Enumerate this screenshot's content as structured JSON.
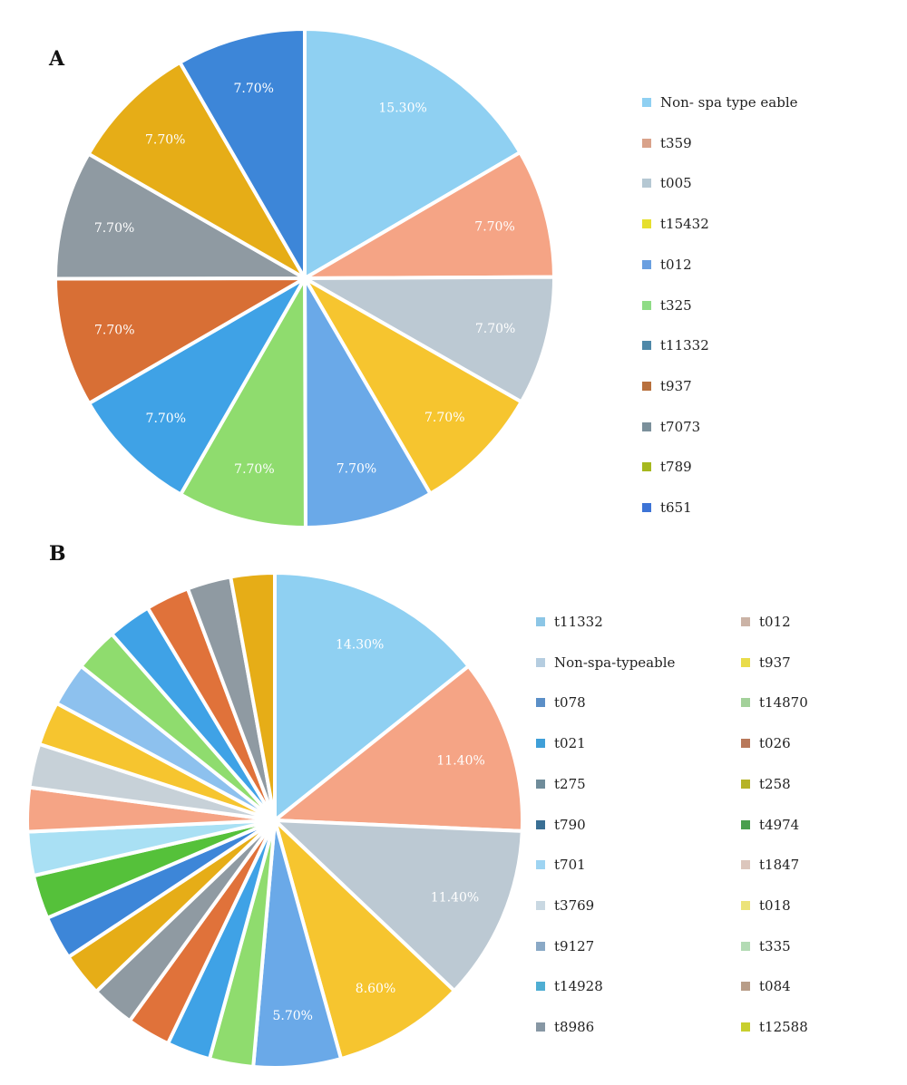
{
  "panels": [
    {
      "letter": "A",
      "chart_data": {
        "type": "pie",
        "categories": [
          "Non- spa type eable",
          "t359",
          "t005",
          "t15432",
          "t012",
          "t325",
          "t11332",
          "t937",
          "t7073",
          "t789",
          "t651"
        ],
        "values": [
          15.3,
          7.7,
          7.7,
          7.7,
          7.7,
          7.7,
          7.7,
          7.7,
          7.7,
          7.7,
          7.7
        ],
        "data_labels": [
          "15.30%",
          "7.70%",
          "7.70%",
          "7.70%",
          "7.70%",
          "7.70%",
          "7.70%",
          "7.70%",
          "7.70%",
          "7.70%",
          "7.70%"
        ],
        "colors": [
          "#8fd0f2",
          "#f5a485",
          "#bcc9d3",
          "#f6c52f",
          "#6aa9e8",
          "#8fdc6e",
          "#3fa2e6",
          "#d86f35",
          "#8f9aa2",
          "#e6ad17",
          "#3d86d8"
        ],
        "legend_colors": [
          "#8fd0f2",
          "#d9a28a",
          "#b5c8d3",
          "#e6df2e",
          "#6a9fe0",
          "#8fdc86",
          "#4f88a8",
          "#b8703d",
          "#7b909b",
          "#a6b81e",
          "#3d74d6"
        ],
        "title": "",
        "legend_position": "right"
      },
      "legend": {
        "columns": [
          [
            "Non- spa type eable",
            "t359",
            "t005",
            "t15432",
            "t012",
            "t325",
            "t11332",
            "t937",
            "t7073",
            "t789",
            "t651"
          ]
        ]
      }
    },
    {
      "letter": "B",
      "chart_data": {
        "type": "pie",
        "categories": [
          "t11332",
          "Non-spa-typeable",
          "t078",
          "t021",
          "t275",
          "t790",
          "t701",
          "t3769",
          "t9127",
          "t14928",
          "t8986",
          "t012",
          "t937",
          "t14870",
          "t026",
          "t258",
          "t4974",
          "t1847",
          "t018",
          "t335",
          "t084",
          "t12588"
        ],
        "values": [
          14.3,
          11.4,
          11.4,
          8.6,
          5.7,
          2.86,
          2.86,
          2.86,
          2.86,
          2.86,
          2.86,
          2.86,
          2.86,
          2.86,
          2.86,
          2.86,
          2.86,
          2.86,
          2.86,
          2.86,
          2.86,
          2.86
        ],
        "data_labels": [
          "14.30%",
          "11.40%",
          "11.40%",
          "8.60%",
          "5.70%",
          "",
          "",
          "",
          "",
          "",
          "",
          "",
          "",
          "",
          "",
          "",
          "",
          "",
          "",
          "",
          "",
          ""
        ],
        "colors": [
          "#8fd0f2",
          "#f5a485",
          "#bcc9d3",
          "#f6c52f",
          "#6aa9e8",
          "#8fdc6e",
          "#3fa2e6",
          "#e0723a",
          "#8f9aa2",
          "#e6ad17",
          "#3d86d8",
          "#55c13a",
          "#a9e0f4",
          "#f5a485",
          "#c7d1d8",
          "#f6c52f",
          "#8dc1ee",
          "#8fdc6e",
          "#3fa2e6",
          "#e0723a",
          "#8f9aa2",
          "#e6ad17"
        ],
        "legend_colors": [
          "#8cc6e6",
          "#b5cde0",
          "#5b8fc7",
          "#3f9fd8",
          "#6f8c9a",
          "#3a6f94",
          "#9ed4f2",
          "#c9d8e2",
          "#8aa9c6",
          "#4faed3",
          "#8797a4",
          "#cbb3a6",
          "#e9dc4a",
          "#a3d19a",
          "#b8785a",
          "#b6b327",
          "#4a9f4e",
          "#dcc6bc",
          "#ece37a",
          "#b3dbb4",
          "#b89d88",
          "#c8cf2e"
        ],
        "title": "",
        "legend_position": "right"
      },
      "legend": {
        "columns": [
          [
            "t11332",
            "Non-spa-typeable",
            "t078",
            "t021",
            "t275",
            "t790",
            "t701",
            "t3769",
            "t9127",
            "t14928",
            "t8986"
          ],
          [
            "t012",
            "t937",
            "t14870",
            "t026",
            "t258",
            "t4974",
            "t1847",
            "t018",
            "t335",
            "t084",
            "t12588"
          ]
        ]
      }
    }
  ]
}
